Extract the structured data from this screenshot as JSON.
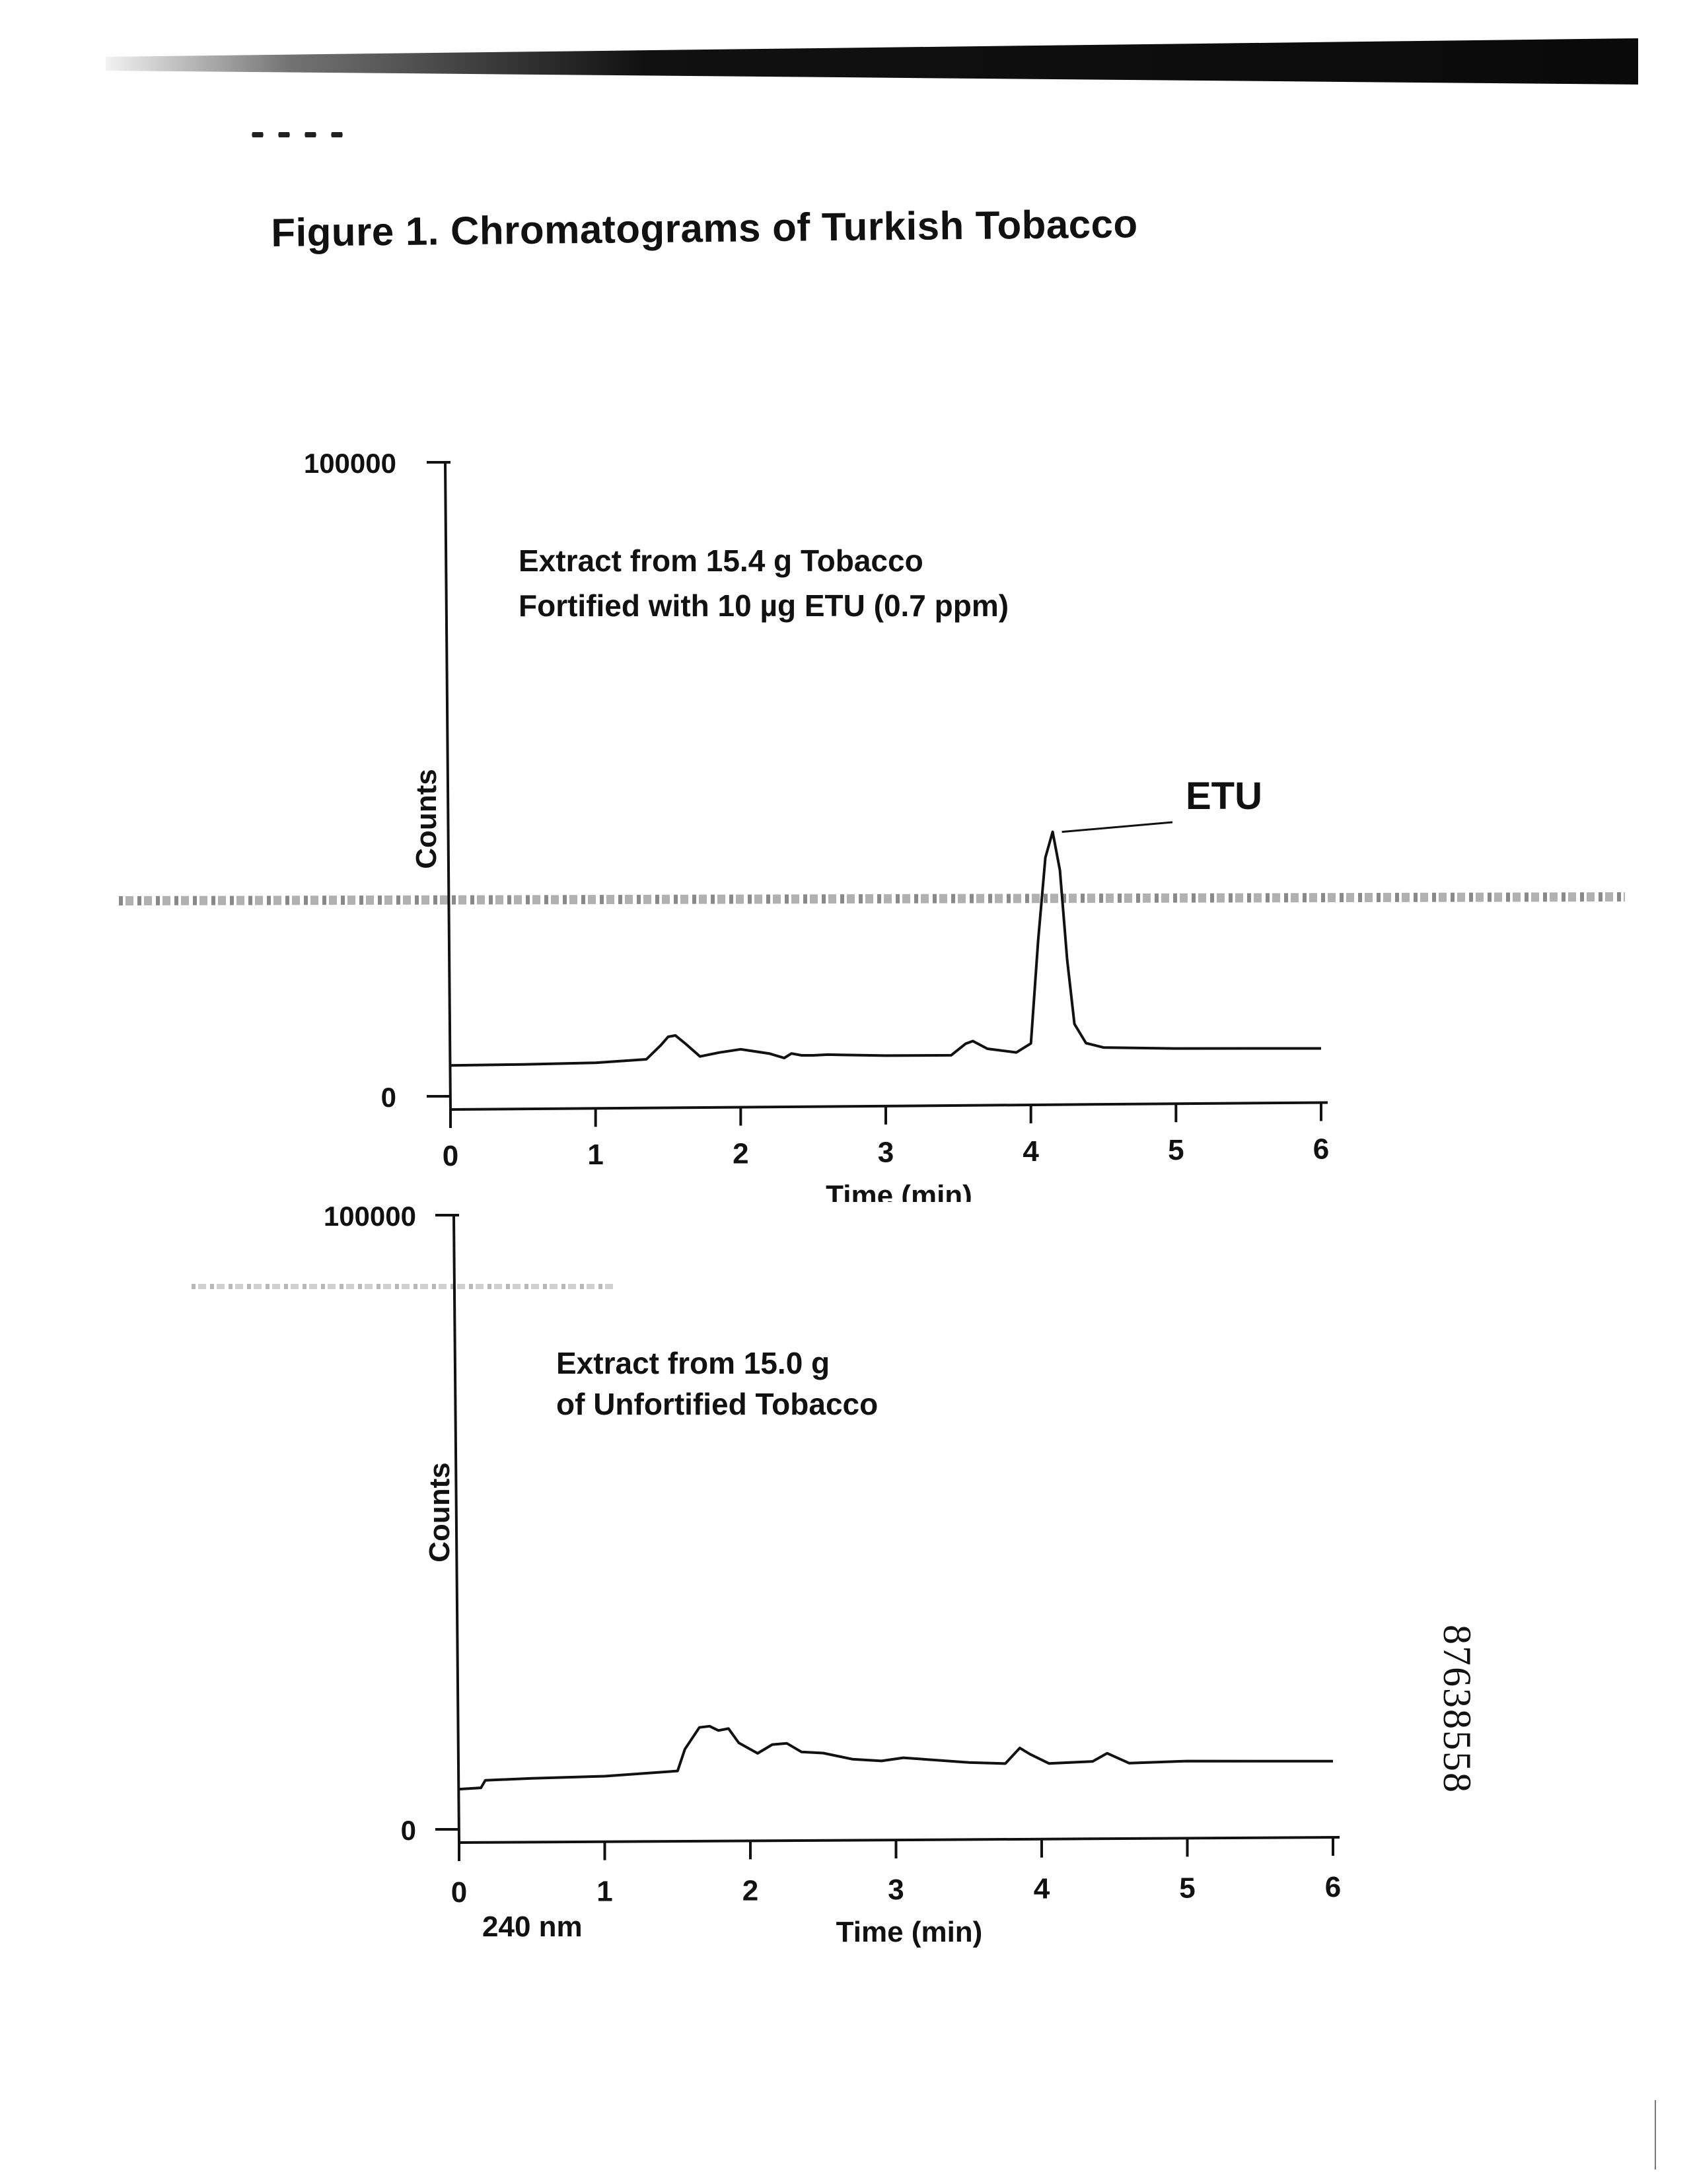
{
  "figure_title": "Figure 1. Chromatograms of Turkish Tobacco",
  "document_id": "87638558",
  "wavelength_label": "240 nm",
  "chart_data": [
    {
      "type": "line",
      "annotation_lines": [
        "Extract from 15.4 g Tobacco",
        "Fortified with 10 µg ETU (0.7 ppm)"
      ],
      "peak_label": "ETU",
      "peak_label_x": 4.15,
      "xlabel": "Time (min)",
      "ylabel": "Counts",
      "xlim": [
        0,
        6
      ],
      "ylim": [
        0,
        100000
      ],
      "xticks": [
        "0",
        "1",
        "2",
        "3",
        "4",
        "5",
        "6"
      ],
      "yticks": [
        "0",
        "100000"
      ],
      "series": [
        {
          "x": [
            0,
            0.5,
            1.0,
            1.35,
            1.45,
            1.5,
            1.55,
            1.62,
            1.72,
            1.85,
            2.0,
            2.2,
            2.3,
            2.35,
            2.42,
            2.5,
            2.6,
            3.0,
            3.45,
            3.55,
            3.6,
            3.7,
            3.9,
            4.0,
            4.05,
            4.1,
            4.15,
            4.2,
            4.25,
            4.3,
            4.38,
            4.5,
            5.0,
            6.0
          ],
          "y": [
            4000,
            4100,
            4300,
            4800,
            7000,
            8300,
            8500,
            7200,
            5200,
            5800,
            6300,
            5600,
            4900,
            5600,
            5300,
            5300,
            5400,
            5200,
            5200,
            7000,
            7400,
            6200,
            5600,
            7000,
            23000,
            36000,
            40000,
            34000,
            20000,
            10000,
            7000,
            6300,
            6100,
            6000
          ]
        }
      ]
    },
    {
      "type": "line",
      "annotation_lines": [
        "Extract from 15.0 g",
        "of Unfortified Tobacco"
      ],
      "xlabel": "Time (min)",
      "ylabel": "Counts",
      "xlim": [
        0,
        6
      ],
      "ylim": [
        0,
        100000
      ],
      "xticks": [
        "0",
        "1",
        "2",
        "3",
        "4",
        "5",
        "6"
      ],
      "yticks": [
        "0",
        "100000"
      ],
      "series": [
        {
          "x": [
            0,
            0.15,
            0.18,
            0.5,
            1.0,
            1.5,
            1.55,
            1.65,
            1.72,
            1.78,
            1.85,
            1.92,
            2.05,
            2.15,
            2.25,
            2.35,
            2.5,
            2.7,
            2.9,
            3.05,
            3.5,
            3.75,
            3.85,
            3.92,
            4.05,
            4.35,
            4.45,
            4.6,
            5.0,
            6.0
          ],
          "y": [
            5200,
            5400,
            6600,
            6900,
            7200,
            8000,
            11500,
            15000,
            15200,
            14500,
            14800,
            12500,
            10800,
            12200,
            12400,
            11000,
            10800,
            9800,
            9500,
            10000,
            9200,
            9000,
            11500,
            10500,
            9000,
            9300,
            10600,
            9000,
            9300,
            9200
          ]
        }
      ]
    }
  ]
}
